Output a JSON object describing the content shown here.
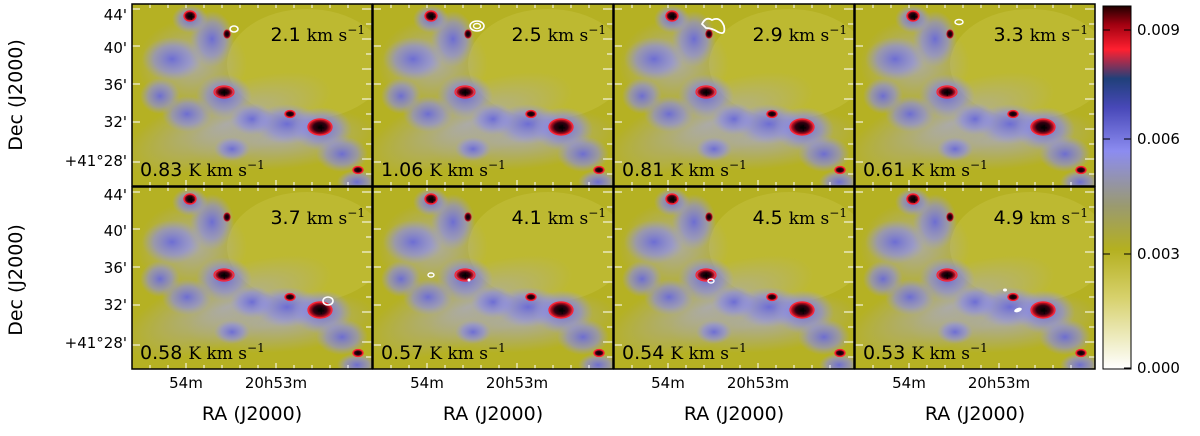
{
  "figure": {
    "ylabel": "Dec (J2000)",
    "xlabel": "RA (J2000)",
    "y_ticks": [
      "44'",
      "40'",
      "36'",
      "32'",
      "+41°28'"
    ],
    "x_ticks": [
      "54m",
      "20h53m"
    ],
    "velocity_unit": "km s",
    "velocity_exponent": "−1",
    "intensity_unit": "K km s",
    "intensity_exponent": "−1"
  },
  "panels": [
    {
      "velocity": "2.1",
      "level": "0.83"
    },
    {
      "velocity": "2.5",
      "level": "1.06"
    },
    {
      "velocity": "2.9",
      "level": "0.81"
    },
    {
      "velocity": "3.3",
      "level": "0.61"
    },
    {
      "velocity": "3.7",
      "level": "0.58"
    },
    {
      "velocity": "4.1",
      "level": "0.57"
    },
    {
      "velocity": "4.5",
      "level": "0.54"
    },
    {
      "velocity": "4.9",
      "level": "0.53"
    }
  ],
  "colorbar": {
    "ticks": [
      "0.009",
      "0.006",
      "0.003",
      "0.000"
    ],
    "stops": [
      "#ffffff",
      "#c8c03a",
      "#b4b020",
      "#8a8a8a",
      "#8080ff",
      "#3a3aa0",
      "#1a3a80",
      "#ff2030",
      "#a00010",
      "#200000"
    ]
  }
}
